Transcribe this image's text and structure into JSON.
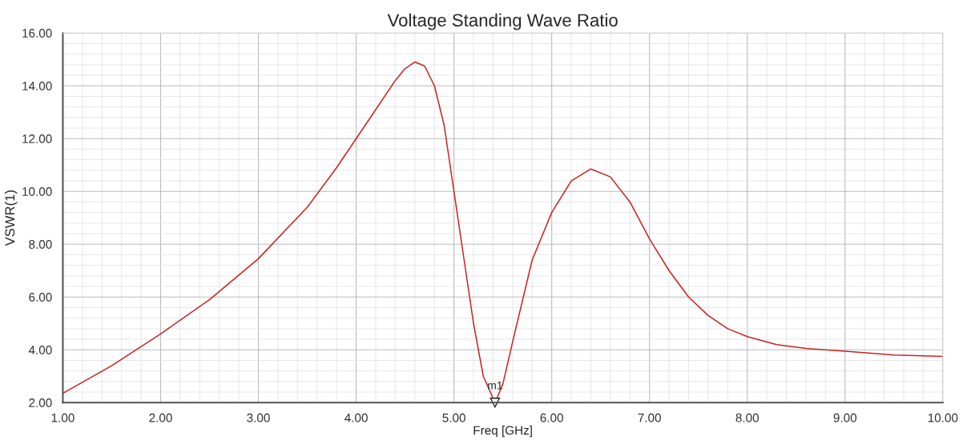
{
  "chart_data": {
    "type": "line",
    "title": "Voltage Standing Wave Ratio",
    "xlabel": "Freq [GHz]",
    "ylabel": "VSWR(1)",
    "x": [
      1.0,
      1.5,
      2.0,
      2.5,
      3.0,
      3.5,
      3.8,
      4.0,
      4.2,
      4.4,
      4.5,
      4.6,
      4.7,
      4.8,
      4.9,
      5.0,
      5.1,
      5.2,
      5.3,
      5.42,
      5.5,
      5.6,
      5.8,
      6.0,
      6.2,
      6.4,
      6.6,
      6.8,
      7.0,
      7.2,
      7.4,
      7.6,
      7.8,
      8.0,
      8.3,
      8.6,
      9.0,
      9.5,
      10.0
    ],
    "series": [
      {
        "color": "#cc2222",
        "values": [
          2.35,
          3.4,
          4.6,
          5.9,
          7.45,
          9.4,
          10.9,
          12.0,
          13.1,
          14.2,
          14.65,
          14.9,
          14.75,
          14.0,
          12.5,
          10.0,
          7.5,
          5.0,
          3.0,
          2.0,
          2.7,
          4.3,
          7.4,
          9.2,
          10.4,
          10.85,
          10.55,
          9.6,
          8.2,
          7.0,
          6.0,
          5.3,
          4.8,
          4.5,
          4.2,
          4.05,
          3.95,
          3.8,
          3.75
        ]
      }
    ],
    "xlim": [
      1,
      10
    ],
    "ylim": [
      2,
      16
    ],
    "xticks": [
      {
        "value": 1,
        "label": "1.00"
      },
      {
        "value": 2,
        "label": "2.00"
      },
      {
        "value": 3,
        "label": "3.00"
      },
      {
        "value": 4,
        "label": "4.00"
      },
      {
        "value": 5,
        "label": "5.00"
      },
      {
        "value": 6,
        "label": "6.00"
      },
      {
        "value": 7,
        "label": "7.00"
      },
      {
        "value": 8,
        "label": "8.00"
      },
      {
        "value": 9,
        "label": "9.00"
      },
      {
        "value": 10,
        "label": "10.00"
      }
    ],
    "yticks": [
      {
        "value": 2,
        "label": "2.00"
      },
      {
        "value": 4,
        "label": "4.00"
      },
      {
        "value": 6,
        "label": "6.00"
      },
      {
        "value": 8,
        "label": "8.00"
      },
      {
        "value": 10,
        "label": "10.00"
      },
      {
        "value": 12,
        "label": "12.00"
      },
      {
        "value": 14,
        "label": "14.00"
      },
      {
        "value": 16,
        "label": "16.00"
      }
    ],
    "grid": true,
    "marker": "none",
    "line_style": "solid",
    "annotations": [
      {
        "text": "m1",
        "x": 5.42,
        "y": 2.0
      }
    ]
  }
}
